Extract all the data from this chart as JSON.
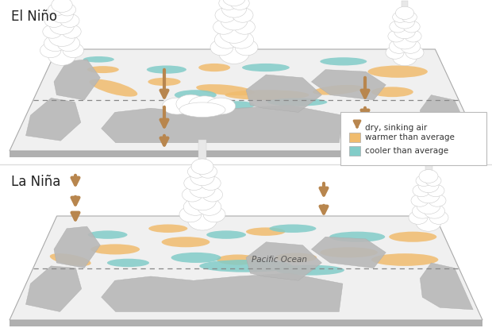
{
  "title_top": "El Niño",
  "title_bottom": "La Niña",
  "legend_items": [
    {
      "label": "dry, sinking air",
      "type": "arrow",
      "color": "#b8864e"
    },
    {
      "label": "warmer than average",
      "type": "rect",
      "color": "#f0bc6e"
    },
    {
      "label": "cooler than average",
      "type": "rect",
      "color": "#82ccc8"
    }
  ],
  "arrow_color": "#b8864e",
  "warm_color": "#f0bc6e",
  "cool_color": "#82ccc8",
  "land_color": "#b8b8b8",
  "ocean_color": "#f0f0f0",
  "bg_color": "#ffffff",
  "shadow_color": "#c8c8c8",
  "dashed_line_color": "#999999",
  "pacific_label": "Pacific Ocean",
  "legend_fontsize": 7.5,
  "title_fontsize": 12
}
